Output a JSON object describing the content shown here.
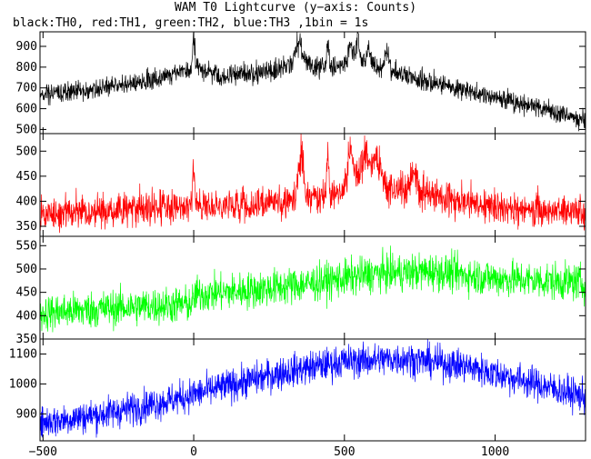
{
  "title": "WAM T0 Lightcurve (y−axis: Counts)",
  "subtitle": "black:TH0, red:TH1, green:TH2, blue:TH3 ,1bin = 1s",
  "chart_data": {
    "type": "line",
    "xlim": [
      -510,
      1300
    ],
    "x_ticks": [
      -500,
      0,
      500,
      1000
    ],
    "x_tick_labels": [
      "−500",
      "0",
      "500",
      "1000"
    ],
    "bin_seconds": 1,
    "panels": [
      {
        "name": "TH0",
        "color": "#000000",
        "ylim": [
          480,
          970
        ],
        "y_ticks": [
          500,
          600,
          700,
          800,
          900
        ],
        "profile": [
          [
            -510,
            665
          ],
          [
            -300,
            700
          ],
          [
            -100,
            750
          ],
          [
            -5,
            790
          ],
          [
            5,
            800
          ],
          [
            100,
            760
          ],
          [
            250,
            780
          ],
          [
            340,
            820
          ],
          [
            420,
            800
          ],
          [
            550,
            820
          ],
          [
            700,
            760
          ],
          [
            900,
            690
          ],
          [
            1100,
            620
          ],
          [
            1300,
            545
          ]
        ],
        "noise": 25,
        "spikes": [
          [
            0,
            150,
            6
          ],
          [
            350,
            120,
            15
          ],
          [
            445,
            130,
            5
          ],
          [
            520,
            120,
            10
          ],
          [
            545,
            140,
            8
          ],
          [
            580,
            80,
            10
          ],
          [
            640,
            90,
            10
          ]
        ]
      },
      {
        "name": "TH1",
        "color": "#ff0000",
        "ylim": [
          330,
          535
        ],
        "y_ticks": [
          350,
          400,
          450,
          500
        ],
        "profile": [
          [
            -510,
            375
          ],
          [
            -200,
            385
          ],
          [
            0,
            390
          ],
          [
            200,
            395
          ],
          [
            350,
            405
          ],
          [
            450,
            410
          ],
          [
            550,
            430
          ],
          [
            700,
            420
          ],
          [
            900,
            400
          ],
          [
            1100,
            385
          ],
          [
            1300,
            375
          ]
        ],
        "noise": 17,
        "spikes": [
          [
            0,
            90,
            5
          ],
          [
            355,
            100,
            12
          ],
          [
            445,
            90,
            5
          ],
          [
            520,
            80,
            15
          ],
          [
            570,
            70,
            25
          ],
          [
            610,
            60,
            20
          ],
          [
            730,
            40,
            15
          ]
        ]
      },
      {
        "name": "TH2",
        "color": "#00ff00",
        "ylim": [
          350,
          570
        ],
        "y_ticks": [
          350,
          400,
          450,
          500,
          550
        ],
        "profile": [
          [
            -510,
            405
          ],
          [
            -300,
            415
          ],
          [
            -5,
            425
          ],
          [
            5,
            445
          ],
          [
            200,
            455
          ],
          [
            400,
            470
          ],
          [
            600,
            490
          ],
          [
            800,
            495
          ],
          [
            1000,
            480
          ],
          [
            1300,
            470
          ]
        ],
        "noise": 20,
        "spikes": []
      },
      {
        "name": "TH3",
        "color": "#0000ff",
        "ylim": [
          810,
          1150
        ],
        "y_ticks": [
          900,
          1000,
          1100
        ],
        "profile": [
          [
            -510,
            870
          ],
          [
            -300,
            900
          ],
          [
            -100,
            940
          ],
          [
            100,
            990
          ],
          [
            300,
            1040
          ],
          [
            500,
            1075
          ],
          [
            700,
            1085
          ],
          [
            900,
            1060
          ],
          [
            1100,
            1010
          ],
          [
            1300,
            955
          ]
        ],
        "noise": 28,
        "spikes": []
      }
    ]
  }
}
